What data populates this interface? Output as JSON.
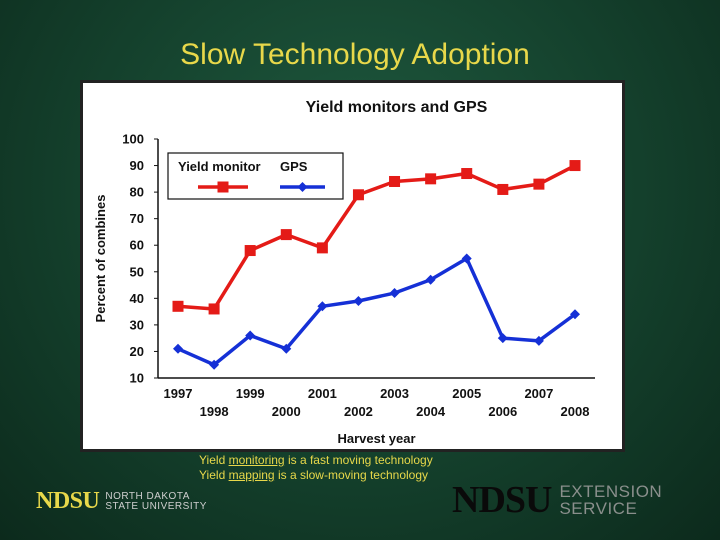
{
  "slide": {
    "title": "Slow Technology Adoption",
    "caption": {
      "line1": [
        "Yield ",
        "monitoring",
        " is a fast moving technology"
      ],
      "line2": [
        "Yield ",
        "mapping",
        " is a slow-moving technology"
      ]
    },
    "logo_left": {
      "mark": "NDSU",
      "line1": "NORTH DAKOTA",
      "line2": "STATE UNIVERSITY"
    },
    "logo_right": {
      "mark": "NDSU",
      "line1": "EXTENSION",
      "line2": "SERVICE"
    }
  },
  "chart_data": {
    "type": "line",
    "title": "Yield monitors and GPS",
    "xlabel": "Harvest year",
    "ylabel": "Percent of combines",
    "x": [
      1997,
      1998,
      1999,
      2000,
      2001,
      2002,
      2003,
      2004,
      2005,
      2006,
      2007,
      2008
    ],
    "x_tick_labels_upper": [
      "1997",
      "1999",
      "2001",
      "2003",
      "2005",
      "2007"
    ],
    "x_tick_labels_lower": [
      "1998",
      "2000",
      "2002",
      "2004",
      "2006",
      "2008"
    ],
    "ylim": [
      10,
      100
    ],
    "yticks": [
      10,
      20,
      30,
      40,
      50,
      60,
      70,
      80,
      90,
      100
    ],
    "grid": false,
    "legend_position": "top-left",
    "series": [
      {
        "name": "Yield monitor",
        "color": "#e41b17",
        "marker": "square",
        "values": [
          37,
          36,
          58,
          64,
          59,
          79,
          84,
          85,
          87,
          81,
          83,
          90
        ]
      },
      {
        "name": "GPS",
        "color": "#1530d6",
        "marker": "diamond",
        "values": [
          21,
          15,
          26,
          21,
          37,
          39,
          42,
          47,
          55,
          25,
          24,
          34
        ]
      }
    ]
  }
}
